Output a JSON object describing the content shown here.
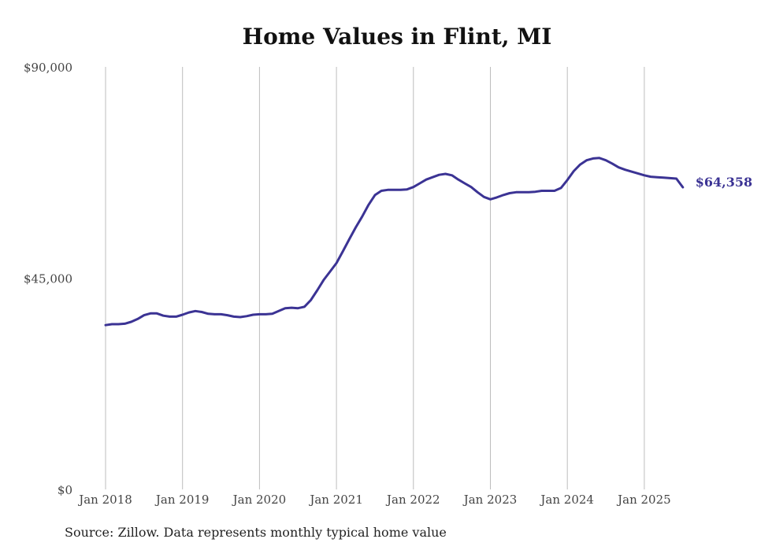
{
  "chart_data": {
    "type": "line",
    "title": "Home Values in Flint, MI",
    "xlabel": "",
    "ylabel": "",
    "source": "Source: Zillow. Data represents monthly typical home value",
    "ylim": [
      0,
      90000
    ],
    "y_ticks": [
      {
        "value": 0,
        "label": "$0"
      },
      {
        "value": 45000,
        "label": "$45,000"
      },
      {
        "value": 90000,
        "label": "$90,000"
      }
    ],
    "x_ticks": [
      "Jan 2018",
      "Jan 2019",
      "Jan 2020",
      "Jan 2021",
      "Jan 2022",
      "Jan 2023",
      "Jan 2024",
      "Jan 2025"
    ],
    "grid": "vertical",
    "line_color": "#3b3394",
    "end_label": "$64,358",
    "series": [
      {
        "values": [
          35000,
          35200,
          35200,
          35300,
          35700,
          36300,
          37100,
          37500,
          37500,
          37000,
          36800,
          36800,
          37200,
          37700,
          38000,
          37800,
          37400,
          37300,
          37300,
          37100,
          36800,
          36700,
          36900,
          37200,
          37300,
          37300,
          37400,
          38000,
          38600,
          38700,
          38600,
          38900,
          40300,
          42400,
          44600,
          46400,
          48200,
          50700,
          53300,
          55800,
          58100,
          60600,
          62700,
          63600,
          63800,
          63800,
          63800,
          63900,
          64400,
          65200,
          66000,
          66500,
          67000,
          67200,
          66900,
          66000,
          65200,
          64400,
          63300,
          62300,
          61800,
          62200,
          62700,
          63100,
          63300,
          63300,
          63300,
          63400,
          63600,
          63600,
          63600,
          64200,
          65900,
          67800,
          69200,
          70100,
          70500,
          70600,
          70100,
          69400,
          68600,
          68100,
          67700,
          67300,
          66900,
          66600,
          66500,
          66400,
          66300,
          66200,
          64358
        ]
      }
    ]
  }
}
